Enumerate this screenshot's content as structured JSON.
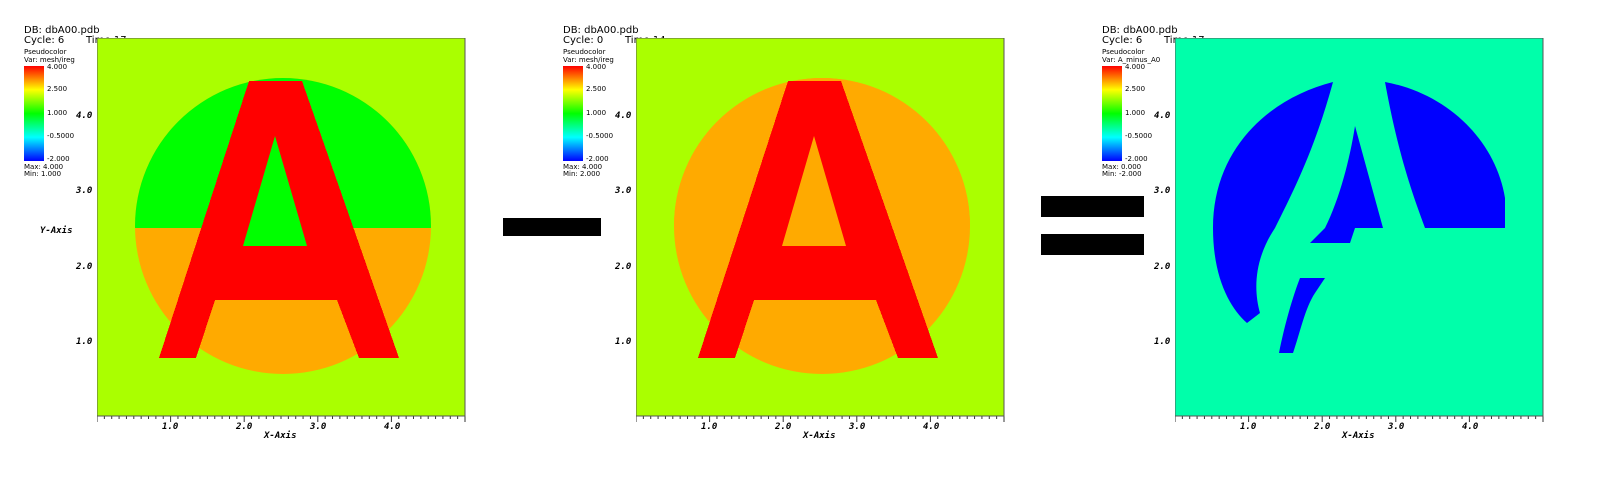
{
  "panels": [
    {
      "db": "DB: dbA00.pdb",
      "cycle": "Cycle: 6",
      "time": "Time:17",
      "plot_type": "Pseudocolor",
      "var": "Var: mesh/ireg",
      "ticks": [
        "4.000",
        "2.500",
        "1.000",
        "-0.5000",
        "-2.000"
      ],
      "max": "Max: 4.000",
      "min": "Min: 1.000",
      "colors": {
        "bg": "#aaff00",
        "a": "#ff0000",
        "upper": "#00ff00",
        "lower": "#ffaa00"
      }
    },
    {
      "db": "DB: dbA00.pdb",
      "cycle": "Cycle: 0",
      "time": "Time:14",
      "plot_type": "Pseudocolor",
      "var": "Var: mesh/ireg",
      "ticks": [
        "4.000",
        "2.500",
        "1.000",
        "-0.5000",
        "-2.000"
      ],
      "max": "Max: 4.000",
      "min": "Min: 2.000",
      "colors": {
        "bg": "#aaff00",
        "a": "#ff0000",
        "upper": "#ffaa00",
        "lower": "#ffaa00"
      }
    },
    {
      "db": "DB: dbA00.pdb",
      "cycle": "Cycle: 6",
      "time": "Time:17",
      "plot_type": "Pseudocolor",
      "var": "Var: A_minus_A0",
      "ticks": [
        "4.000",
        "2.500",
        "1.000",
        "-0.5000",
        "-2.000"
      ],
      "max": "Max: 0.000",
      "min": "Min: -2.000",
      "colors": {
        "bg": "#00ffaa",
        "blue": "#0000ff"
      }
    }
  ],
  "axes": {
    "xlabel": "X-Axis",
    "ylabel": "Y-Axis",
    "xticks": [
      "1.0",
      "2.0",
      "3.0",
      "4.0"
    ],
    "yticks": [
      "4.0",
      "3.0",
      "2.0",
      "1.0"
    ]
  },
  "operators": [
    "minus",
    "equals"
  ]
}
